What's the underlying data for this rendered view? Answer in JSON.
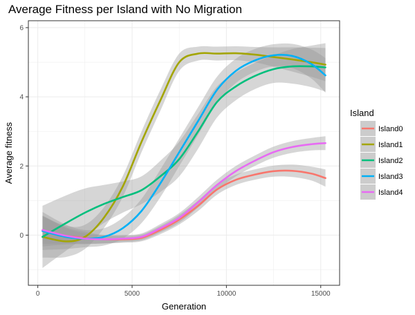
{
  "chart_data": {
    "type": "line",
    "title": "Average Fitness per Island with No Migration",
    "xlabel": "Generation",
    "ylabel": "Average fitness",
    "xlim": [
      -500,
      16000
    ],
    "ylim": [
      -1.45,
      6.2
    ],
    "x_ticks": [
      0,
      5000,
      10000,
      15000
    ],
    "y_ticks": [
      0,
      2,
      4,
      6
    ],
    "grid": true,
    "legend": {
      "title": "Island",
      "placement": "right"
    },
    "series": [
      {
        "name": "Island0",
        "color": "#F8766D",
        "x": [
          250,
          1500,
          2500,
          3500,
          4500,
          5500,
          6500,
          7500,
          8500,
          9500,
          10500,
          11500,
          12500,
          13500,
          14500,
          15250
        ],
        "y": [
          0.12,
          -0.02,
          -0.08,
          -0.12,
          -0.12,
          -0.08,
          0.15,
          0.45,
          0.85,
          1.32,
          1.6,
          1.75,
          1.85,
          1.86,
          1.78,
          1.65
        ],
        "ci_half_width": [
          0.45,
          0.25,
          0.18,
          0.12,
          0.1,
          0.1,
          0.12,
          0.14,
          0.15,
          0.15,
          0.15,
          0.15,
          0.16,
          0.18,
          0.2,
          0.25
        ]
      },
      {
        "name": "Island1",
        "color": "#A3A500",
        "x": [
          250,
          1500,
          2500,
          3500,
          4500,
          5500,
          6500,
          7500,
          8500,
          9500,
          10500,
          11500,
          12500,
          13500,
          14500,
          15250
        ],
        "y": [
          -0.05,
          -0.18,
          -0.05,
          0.5,
          1.4,
          2.7,
          3.9,
          5.0,
          5.25,
          5.25,
          5.26,
          5.22,
          5.15,
          5.08,
          5.0,
          4.93
        ],
        "ci_half_width": [
          0.6,
          0.45,
          0.35,
          0.3,
          0.3,
          0.3,
          0.3,
          0.25,
          0.2,
          0.2,
          0.2,
          0.22,
          0.28,
          0.35,
          0.42,
          0.48
        ]
      },
      {
        "name": "Island2",
        "color": "#00BF7D",
        "x": [
          250,
          1500,
          2500,
          3500,
          4500,
          5500,
          6500,
          7500,
          8500,
          9500,
          10500,
          11500,
          12500,
          13500,
          14500,
          15250
        ],
        "y": [
          -0.05,
          0.35,
          0.65,
          0.9,
          1.1,
          1.3,
          1.7,
          2.2,
          3.0,
          3.85,
          4.3,
          4.6,
          4.8,
          4.88,
          4.88,
          4.85
        ],
        "ci_half_width": [
          0.9,
          0.8,
          0.7,
          0.55,
          0.45,
          0.4,
          0.45,
          0.5,
          0.5,
          0.45,
          0.4,
          0.38,
          0.4,
          0.5,
          0.6,
          0.7
        ]
      },
      {
        "name": "Island3",
        "color": "#00B0F6",
        "x": [
          250,
          1500,
          2500,
          3500,
          4500,
          5500,
          6500,
          7500,
          8500,
          9500,
          10500,
          11500,
          12500,
          13500,
          14500,
          15250
        ],
        "y": [
          0.12,
          -0.05,
          -0.1,
          -0.05,
          0.2,
          0.7,
          1.5,
          2.4,
          3.3,
          4.2,
          4.75,
          5.05,
          5.2,
          5.18,
          4.95,
          4.62
        ],
        "ci_half_width": [
          0.55,
          0.35,
          0.25,
          0.25,
          0.3,
          0.35,
          0.4,
          0.4,
          0.4,
          0.38,
          0.35,
          0.33,
          0.32,
          0.35,
          0.42,
          0.5
        ]
      },
      {
        "name": "Island4",
        "color": "#E76BF3",
        "x": [
          250,
          1500,
          2500,
          3500,
          4500,
          5500,
          6500,
          7500,
          8500,
          9500,
          10500,
          11500,
          12500,
          13500,
          14500,
          15250
        ],
        "y": [
          0.15,
          -0.02,
          -0.1,
          -0.12,
          -0.1,
          -0.05,
          0.2,
          0.5,
          0.95,
          1.45,
          1.85,
          2.15,
          2.4,
          2.55,
          2.63,
          2.66
        ],
        "ci_half_width": [
          0.4,
          0.22,
          0.15,
          0.12,
          0.1,
          0.1,
          0.12,
          0.14,
          0.15,
          0.15,
          0.15,
          0.15,
          0.16,
          0.17,
          0.18,
          0.2
        ]
      }
    ]
  }
}
